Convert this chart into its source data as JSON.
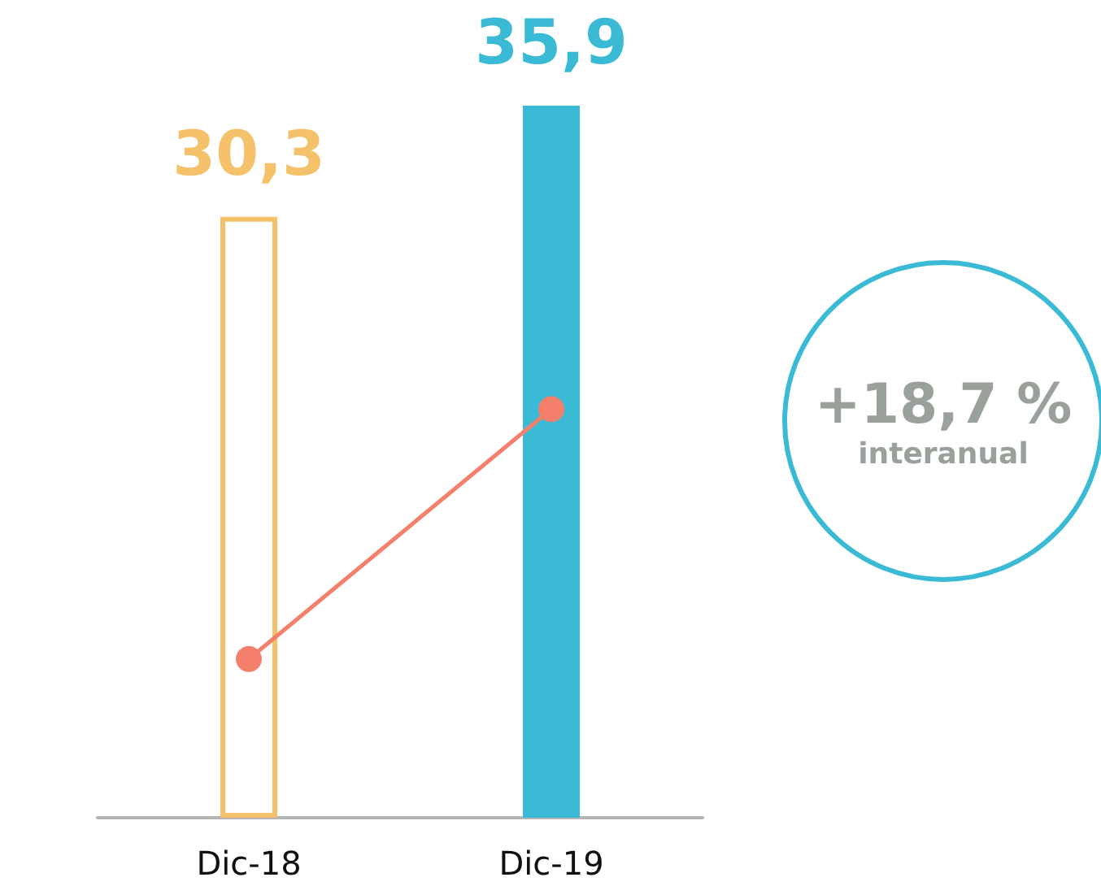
{
  "chart_data": {
    "type": "bar",
    "categories": [
      "Dic-18",
      "Dic-19"
    ],
    "values": [
      30.3,
      35.9
    ],
    "colors": [
      "#f5c26b",
      "#3bbad6"
    ],
    "value_labels": [
      "30,3",
      "35,9"
    ],
    "series": [
      {
        "type": "line",
        "color": "#f47f6b",
        "values": [
          8.0,
          20.6
        ]
      }
    ],
    "tick_labels": "x",
    "grid": false,
    "marker": "circle",
    "annotations": [
      "+18,7 %",
      "interanual"
    ]
  }
}
